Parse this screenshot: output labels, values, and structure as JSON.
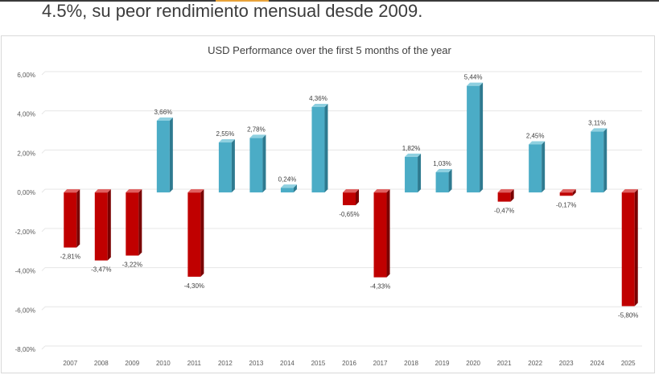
{
  "page": {
    "headline": "4.5%, su peor rendimiento mensual desde 2009."
  },
  "colors": {
    "positive": "#4BACC6",
    "positive_side": "#2E7A90",
    "positive_top": "#8FD0E0",
    "negative": "#C00000",
    "negative_side": "#7A0000",
    "negative_top": "#E06060",
    "grid": "#e6e6e6"
  },
  "chart_data": {
    "type": "bar",
    "title": "USD Performance over the first 5 months of the year",
    "xlabel": "",
    "ylabel": "",
    "ylim": [
      -8,
      6
    ],
    "y_ticks": [
      {
        "value": 6,
        "label": "6,00%"
      },
      {
        "value": 4,
        "label": "4,00%"
      },
      {
        "value": 2,
        "label": "2,00%"
      },
      {
        "value": 0,
        "label": "0,00%"
      },
      {
        "value": -2,
        "label": "-2,00%"
      },
      {
        "value": -4,
        "label": "-4,00%"
      },
      {
        "value": -6,
        "label": "-6,00%"
      },
      {
        "value": -8,
        "label": "-8,00%"
      }
    ],
    "grid": true,
    "categories": [
      "2007",
      "2008",
      "2009",
      "2010",
      "2011",
      "2012",
      "2013",
      "2014",
      "2015",
      "2016",
      "2017",
      "2018",
      "2019",
      "2020",
      "2021",
      "2022",
      "2023",
      "2024",
      "2025"
    ],
    "values": [
      -2.81,
      -3.47,
      -3.22,
      3.66,
      -4.3,
      2.55,
      2.78,
      0.24,
      4.36,
      -0.65,
      -4.33,
      1.82,
      1.03,
      5.44,
      -0.47,
      2.45,
      -0.17,
      3.11,
      -5.8
    ],
    "data_labels": [
      "-2,81%",
      "-3,47%",
      "-3,22%",
      "3,66%",
      "-4,30%",
      "2,55%",
      "2,78%",
      "0,24%",
      "4,36%",
      "-0,65%",
      "-4,33%",
      "1,82%",
      "1,03%",
      "5,44%",
      "-0,47%",
      "2,45%",
      "-0,17%",
      "3,11%",
      "-5,80%"
    ]
  }
}
